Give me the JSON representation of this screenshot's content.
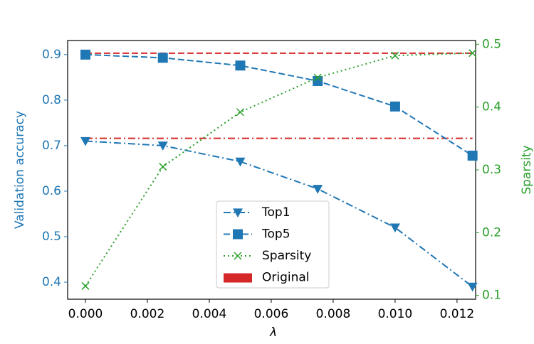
{
  "chart_data": {
    "type": "line",
    "xlabel": "λ",
    "ylabel": "Validation accuracy",
    "y2label": "Sparsity",
    "x": [
      0,
      0.0025,
      0.005,
      0.0075,
      0.01,
      0.0125
    ],
    "xlim": [
      -0.000575,
      0.0126
    ],
    "xticks": [
      {
        "value": 0,
        "label": "0.000"
      },
      {
        "value": 0.002,
        "label": "0.002"
      },
      {
        "value": 0.004,
        "label": "0.004"
      },
      {
        "value": 0.006,
        "label": "0.006"
      },
      {
        "value": 0.008,
        "label": "0.008"
      },
      {
        "value": 0.01,
        "label": "0.010"
      },
      {
        "value": 0.012,
        "label": "0.012"
      }
    ],
    "ylim": [
      0.3625,
      0.931
    ],
    "yticks": [
      0.4,
      0.5,
      0.6,
      0.7,
      0.8,
      0.9
    ],
    "y2lim": [
      0.094,
      0.506
    ],
    "y2ticks": [
      0.1,
      0.2,
      0.3,
      0.4,
      0.5
    ],
    "ycolor": "#1f77b4",
    "y2color": "#2ca02c",
    "series": [
      {
        "name": "Top1",
        "color": "#1f77b4",
        "marker": "triangle-down",
        "linestyle": "dashdot",
        "values": [
          0.71,
          0.7,
          0.665,
          0.605,
          0.52,
          0.39
        ]
      },
      {
        "name": "Top5",
        "color": "#1f77b4",
        "marker": "square",
        "linestyle": "dashed",
        "values": [
          0.9,
          0.893,
          0.876,
          0.842,
          0.786,
          0.678
        ]
      },
      {
        "name": "Sparsity",
        "color": "#2ca02c",
        "marker": "x",
        "linestyle": "dotted",
        "axis": "y2",
        "values": [
          0.115,
          0.305,
          0.392,
          0.447,
          0.482,
          0.486
        ]
      }
    ],
    "reference": {
      "name": "Original",
      "color": "#d62728",
      "values": [
        0.903,
        0.716
      ],
      "linestyles": [
        "dashed",
        "dashdot"
      ]
    }
  }
}
